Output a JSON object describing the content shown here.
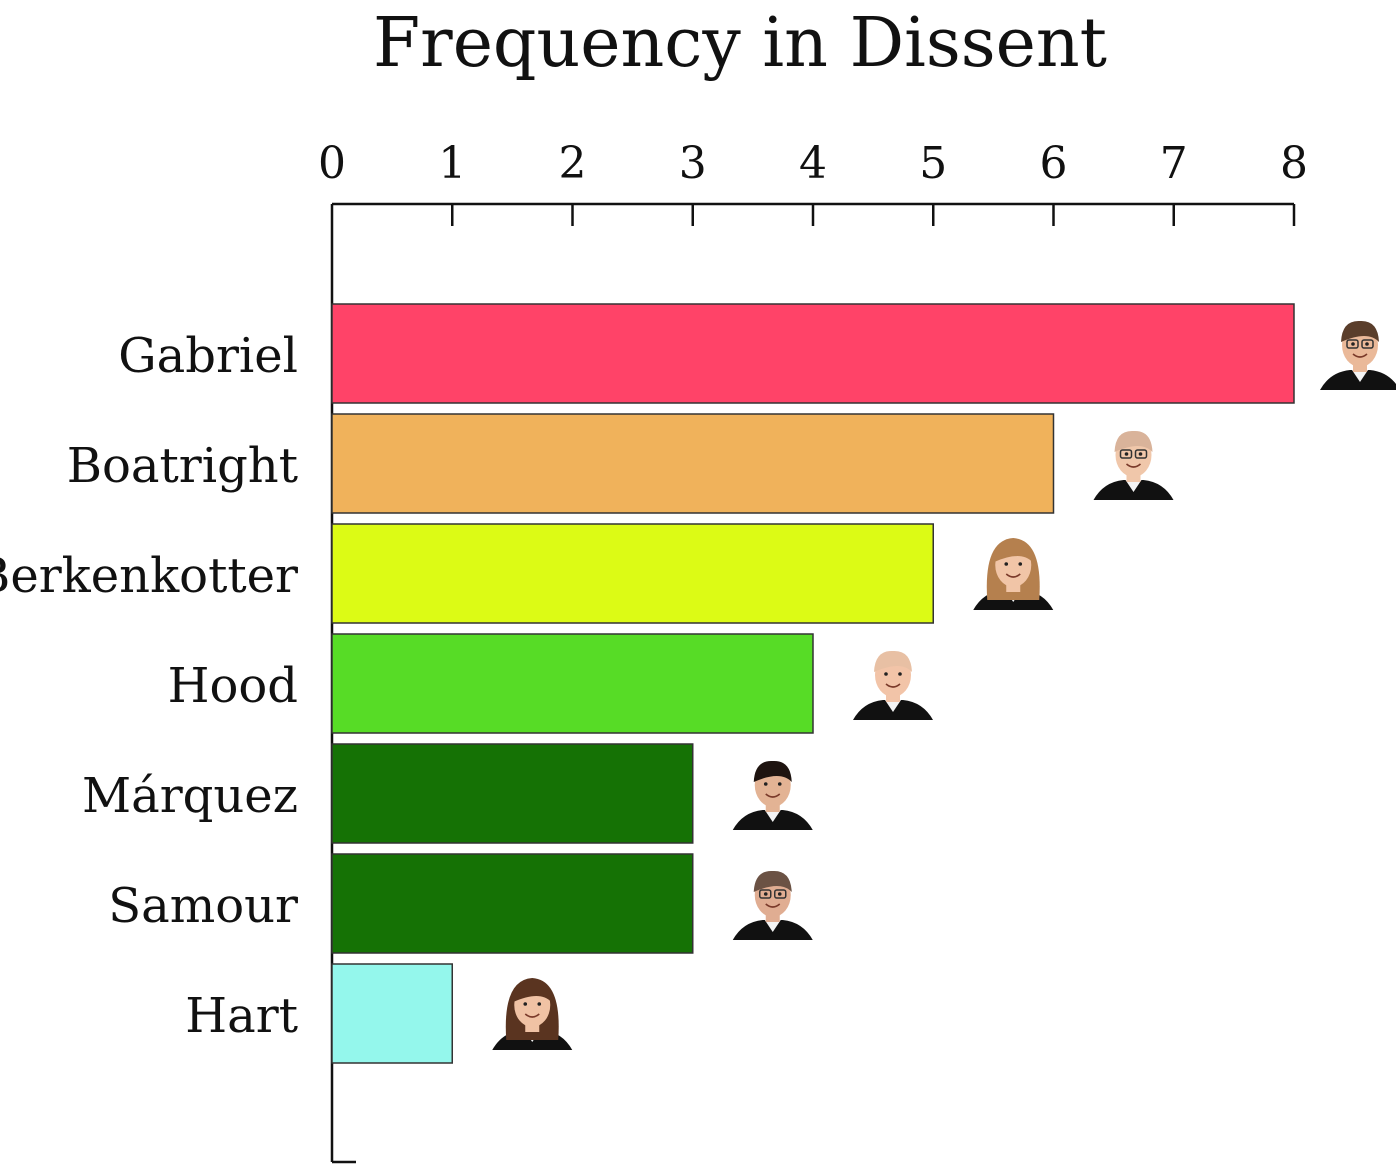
{
  "chart_data": {
    "type": "bar",
    "orientation": "horizontal",
    "title": "Frequency in Dissent",
    "xlabel": "",
    "ylabel": "",
    "xlim": [
      0,
      8
    ],
    "x_ticks": [
      0,
      1,
      2,
      3,
      4,
      5,
      6,
      7,
      8
    ],
    "axis_position": "top",
    "grid": false,
    "categories": [
      "Gabriel",
      "Boatright",
      "Berkenkotter",
      "Hood",
      "Márquez",
      "Samour",
      "Hart"
    ],
    "values": [
      8,
      6,
      5,
      4,
      3,
      3,
      1
    ],
    "colors": [
      "#ff4368",
      "#f0b25b",
      "#dcfb15",
      "#57dc26",
      "#157205",
      "#157205",
      "#94f7ec"
    ],
    "portraits": [
      {
        "name": "Gabriel",
        "skin": "#eab999",
        "hair": "#5a3e2b",
        "glasses": true,
        "long_hair": false
      },
      {
        "name": "Boatright",
        "skin": "#f0c7aa",
        "hair": "#d9b39a",
        "glasses": true,
        "long_hair": false
      },
      {
        "name": "Berkenkotter",
        "skin": "#f1c5a7",
        "hair": "#b5804e",
        "glasses": false,
        "long_hair": true
      },
      {
        "name": "Hood",
        "skin": "#f2c4a8",
        "hair": "#e8c0a4",
        "glasses": false,
        "long_hair": false
      },
      {
        "name": "Márquez",
        "skin": "#e3b394",
        "hair": "#1e1410",
        "glasses": false,
        "long_hair": false
      },
      {
        "name": "Samour",
        "skin": "#e0ad92",
        "hair": "#6b5244",
        "glasses": true,
        "long_hair": false
      },
      {
        "name": "Hart",
        "skin": "#f0c2a4",
        "hair": "#5a3420",
        "glasses": false,
        "long_hair": true
      }
    ]
  }
}
